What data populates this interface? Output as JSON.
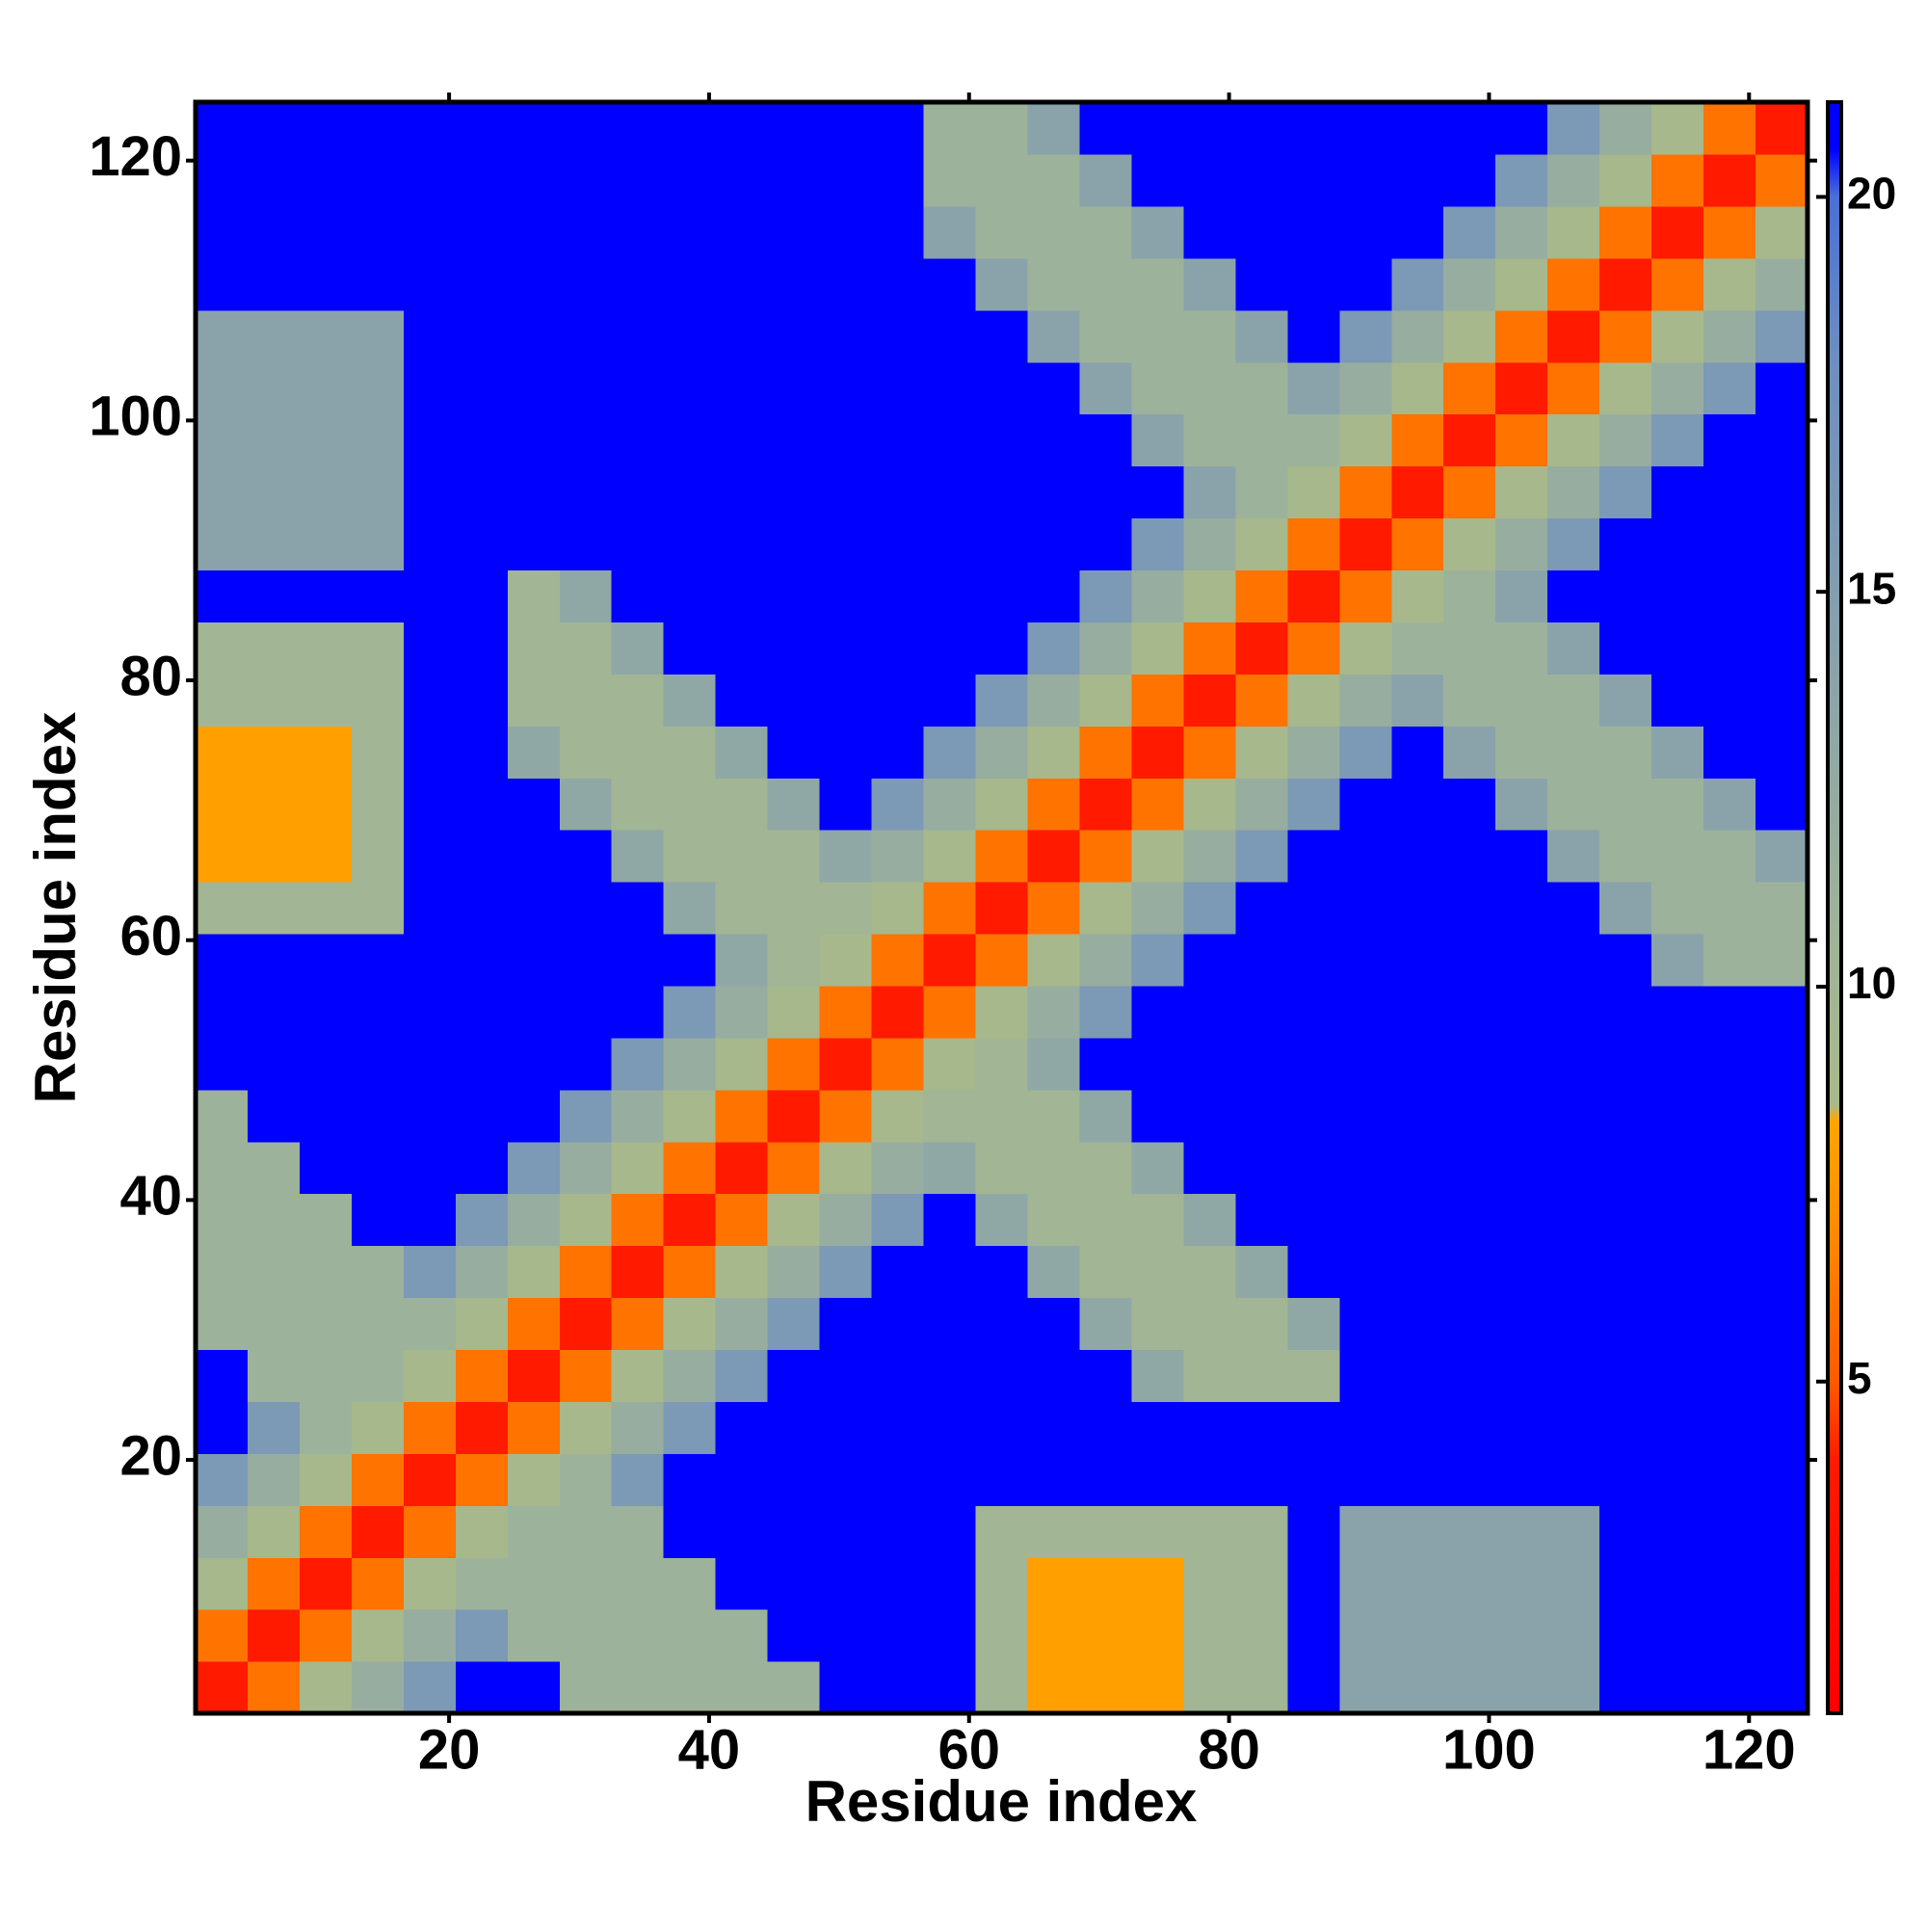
{
  "chart_data": {
    "type": "heatmap",
    "xlabel": "Residue index",
    "ylabel": "Residue index",
    "x": [
      2.5,
      6.5,
      10.5,
      14.5,
      18.5,
      22.5,
      26.5,
      30.5,
      34.5,
      38.5,
      42.5,
      46.5,
      50.5,
      54.5,
      58.5,
      62.5,
      66.5,
      70.5,
      74.5,
      78.5,
      82.5,
      86.5,
      90.5,
      94.5,
      98.5,
      102.5,
      106.5,
      110.5,
      114.5,
      118.5,
      122.5
    ],
    "y": [
      2.5,
      6.5,
      10.5,
      14.5,
      18.5,
      22.5,
      26.5,
      30.5,
      34.5,
      38.5,
      42.5,
      46.5,
      50.5,
      54.5,
      58.5,
      62.5,
      66.5,
      70.5,
      74.5,
      78.5,
      82.5,
      86.5,
      90.5,
      94.5,
      98.5,
      102.5,
      106.5,
      110.5,
      114.5,
      118.5,
      122.5
    ],
    "z": [
      [
        4,
        6,
        9,
        12,
        16,
        21,
        21,
        11,
        11,
        11,
        11,
        11,
        21,
        21,
        21,
        10,
        8,
        8,
        8,
        10,
        10,
        21,
        14,
        14,
        14,
        14,
        14,
        21,
        21,
        21,
        21
      ],
      [
        6,
        4,
        6,
        9,
        12,
        16,
        11,
        11,
        11,
        11,
        11,
        21,
        21,
        21,
        21,
        10,
        8,
        8,
        8,
        10,
        10,
        21,
        14,
        14,
        14,
        14,
        14,
        21,
        21,
        21,
        21
      ],
      [
        9,
        6,
        4,
        6,
        9,
        11,
        11,
        11,
        11,
        11,
        21,
        21,
        21,
        21,
        21,
        10,
        8,
        8,
        8,
        10,
        10,
        21,
        14,
        14,
        14,
        14,
        14,
        21,
        21,
        21,
        21
      ],
      [
        12,
        9,
        6,
        4,
        6,
        9,
        11,
        11,
        11,
        21,
        21,
        21,
        21,
        21,
        21,
        10,
        10,
        10,
        10,
        10,
        10,
        21,
        14,
        14,
        14,
        14,
        14,
        21,
        21,
        21,
        21
      ],
      [
        16,
        12,
        9,
        6,
        4,
        6,
        9,
        11,
        16,
        21,
        21,
        21,
        21,
        21,
        21,
        21,
        21,
        21,
        21,
        21,
        21,
        21,
        21,
        21,
        21,
        21,
        21,
        21,
        21,
        21,
        21
      ],
      [
        21,
        16,
        11,
        9,
        6,
        4,
        6,
        9,
        12,
        16,
        21,
        21,
        21,
        21,
        21,
        21,
        21,
        21,
        21,
        21,
        21,
        21,
        21,
        21,
        21,
        21,
        21,
        21,
        21,
        21,
        21
      ],
      [
        21,
        11,
        11,
        11,
        9,
        6,
        4,
        6,
        9,
        12,
        16,
        21,
        21,
        21,
        21,
        21,
        21,
        21,
        13,
        10,
        10,
        10,
        21,
        21,
        21,
        21,
        21,
        21,
        21,
        21,
        21
      ],
      [
        11,
        11,
        11,
        11,
        11,
        9,
        6,
        4,
        6,
        9,
        12,
        16,
        21,
        21,
        21,
        21,
        21,
        13,
        10,
        10,
        10,
        13,
        21,
        21,
        21,
        21,
        21,
        21,
        21,
        21,
        21
      ],
      [
        11,
        11,
        11,
        11,
        16,
        12,
        9,
        6,
        4,
        6,
        9,
        12,
        16,
        21,
        21,
        21,
        13,
        10,
        10,
        10,
        13,
        21,
        21,
        21,
        21,
        21,
        21,
        21,
        21,
        21,
        21
      ],
      [
        11,
        11,
        11,
        21,
        21,
        16,
        12,
        9,
        6,
        4,
        6,
        9,
        12,
        16,
        21,
        13,
        10,
        10,
        10,
        13,
        21,
        21,
        21,
        21,
        21,
        21,
        21,
        21,
        21,
        21,
        21
      ],
      [
        11,
        11,
        21,
        21,
        21,
        21,
        16,
        12,
        9,
        6,
        4,
        6,
        9,
        12,
        13,
        10,
        10,
        10,
        13,
        21,
        21,
        21,
        21,
        21,
        21,
        21,
        21,
        21,
        21,
        21,
        21
      ],
      [
        11,
        21,
        21,
        21,
        21,
        21,
        21,
        16,
        12,
        9,
        6,
        4,
        6,
        9,
        10,
        10,
        10,
        13,
        21,
        21,
        21,
        21,
        21,
        21,
        21,
        21,
        21,
        21,
        21,
        21,
        21
      ],
      [
        21,
        21,
        21,
        21,
        21,
        21,
        21,
        21,
        16,
        12,
        9,
        6,
        4,
        6,
        9,
        10,
        13,
        21,
        21,
        21,
        21,
        21,
        21,
        21,
        21,
        21,
        21,
        21,
        21,
        21,
        21
      ],
      [
        21,
        21,
        21,
        21,
        21,
        21,
        21,
        21,
        21,
        16,
        12,
        9,
        6,
        4,
        6,
        9,
        12,
        16,
        21,
        21,
        21,
        21,
        21,
        21,
        21,
        21,
        21,
        21,
        21,
        21,
        21
      ],
      [
        21,
        21,
        21,
        21,
        21,
        21,
        21,
        21,
        21,
        21,
        13,
        10,
        9,
        6,
        4,
        6,
        9,
        12,
        16,
        21,
        21,
        21,
        21,
        21,
        21,
        21,
        21,
        21,
        14,
        11,
        11
      ],
      [
        10,
        10,
        10,
        10,
        21,
        21,
        21,
        21,
        21,
        13,
        10,
        10,
        10,
        9,
        6,
        4,
        6,
        9,
        12,
        16,
        21,
        21,
        21,
        21,
        21,
        21,
        21,
        14,
        11,
        11,
        11
      ],
      [
        8,
        8,
        8,
        10,
        21,
        21,
        21,
        21,
        13,
        10,
        10,
        10,
        13,
        12,
        9,
        6,
        4,
        6,
        9,
        12,
        16,
        21,
        21,
        21,
        21,
        21,
        14,
        11,
        11,
        11,
        14
      ],
      [
        8,
        8,
        8,
        10,
        21,
        21,
        21,
        13,
        10,
        10,
        10,
        13,
        21,
        16,
        12,
        9,
        6,
        4,
        6,
        9,
        12,
        16,
        21,
        21,
        21,
        14,
        11,
        11,
        11,
        14,
        21
      ],
      [
        8,
        8,
        8,
        10,
        21,
        21,
        13,
        10,
        10,
        10,
        13,
        21,
        21,
        21,
        16,
        12,
        9,
        6,
        4,
        6,
        9,
        12,
        16,
        21,
        14,
        11,
        11,
        11,
        14,
        21,
        21
      ],
      [
        10,
        10,
        10,
        10,
        21,
        21,
        10,
        10,
        10,
        13,
        21,
        21,
        21,
        21,
        21,
        16,
        12,
        9,
        6,
        4,
        6,
        9,
        12,
        14,
        11,
        11,
        11,
        14,
        21,
        21,
        21
      ],
      [
        10,
        10,
        10,
        10,
        21,
        21,
        10,
        10,
        13,
        21,
        21,
        21,
        21,
        21,
        21,
        21,
        16,
        12,
        9,
        6,
        4,
        6,
        9,
        11,
        11,
        11,
        14,
        21,
        21,
        21,
        21
      ],
      [
        21,
        21,
        21,
        21,
        21,
        21,
        10,
        13,
        21,
        21,
        21,
        21,
        21,
        21,
        21,
        21,
        21,
        16,
        12,
        9,
        6,
        4,
        6,
        9,
        11,
        14,
        21,
        21,
        21,
        21,
        21
      ],
      [
        14,
        14,
        14,
        14,
        21,
        21,
        21,
        21,
        21,
        21,
        21,
        21,
        21,
        21,
        21,
        21,
        21,
        21,
        16,
        12,
        9,
        6,
        4,
        6,
        9,
        12,
        16,
        21,
        21,
        21,
        21
      ],
      [
        14,
        14,
        14,
        14,
        21,
        21,
        21,
        21,
        21,
        21,
        21,
        21,
        21,
        21,
        21,
        21,
        21,
        21,
        21,
        14,
        11,
        9,
        6,
        4,
        6,
        9,
        12,
        16,
        21,
        21,
        21
      ],
      [
        14,
        14,
        14,
        14,
        21,
        21,
        21,
        21,
        21,
        21,
        21,
        21,
        21,
        21,
        21,
        21,
        21,
        21,
        14,
        11,
        11,
        11,
        9,
        6,
        4,
        6,
        9,
        12,
        16,
        21,
        21
      ],
      [
        14,
        14,
        14,
        14,
        21,
        21,
        21,
        21,
        21,
        21,
        21,
        21,
        21,
        21,
        21,
        21,
        21,
        14,
        11,
        11,
        11,
        14,
        12,
        9,
        6,
        4,
        6,
        9,
        12,
        16,
        21
      ],
      [
        14,
        14,
        14,
        14,
        21,
        21,
        21,
        21,
        21,
        21,
        21,
        21,
        21,
        21,
        21,
        21,
        14,
        11,
        11,
        11,
        14,
        21,
        16,
        12,
        9,
        6,
        4,
        6,
        9,
        12,
        16
      ],
      [
        21,
        21,
        21,
        21,
        21,
        21,
        21,
        21,
        21,
        21,
        21,
        21,
        21,
        21,
        21,
        14,
        11,
        11,
        11,
        14,
        21,
        21,
        21,
        16,
        12,
        9,
        6,
        4,
        6,
        9,
        12
      ],
      [
        21,
        21,
        21,
        21,
        21,
        21,
        21,
        21,
        21,
        21,
        21,
        21,
        21,
        21,
        14,
        11,
        11,
        11,
        14,
        21,
        21,
        21,
        21,
        21,
        16,
        12,
        9,
        6,
        4,
        6,
        9
      ],
      [
        21,
        21,
        21,
        21,
        21,
        21,
        21,
        21,
        21,
        21,
        21,
        21,
        21,
        21,
        11,
        11,
        11,
        14,
        21,
        21,
        21,
        21,
        21,
        21,
        21,
        16,
        12,
        9,
        6,
        4,
        6
      ],
      [
        21,
        21,
        21,
        21,
        21,
        21,
        21,
        21,
        21,
        21,
        21,
        21,
        21,
        21,
        11,
        11,
        14,
        21,
        21,
        21,
        21,
        21,
        21,
        21,
        21,
        21,
        16,
        12,
        9,
        6,
        4
      ]
    ],
    "xlim": [
      0.5,
      124.5
    ],
    "ylim": [
      0.5,
      124.5
    ],
    "xticks": [
      20,
      40,
      60,
      80,
      100,
      120
    ],
    "yticks": [
      20,
      40,
      60,
      80,
      100,
      120
    ],
    "clim": [
      0.8,
      21.2
    ],
    "cticks": [
      5,
      10,
      15,
      20
    ],
    "colorscale": [
      [
        0.8,
        "#ff0000"
      ],
      [
        4,
        "#ff1a00"
      ],
      [
        5,
        "#ff5a00"
      ],
      [
        7,
        "#ff8c00"
      ],
      [
        8.3,
        "#ffa500"
      ],
      [
        8.5,
        "#a9ba8a"
      ],
      [
        11,
        "#9db29a"
      ],
      [
        14,
        "#8aa3aa"
      ],
      [
        18,
        "#6d8ec0"
      ],
      [
        20,
        "#4a6fd6"
      ],
      [
        20.6,
        "#0000ff"
      ],
      [
        21.2,
        "#0000ff"
      ]
    ]
  }
}
